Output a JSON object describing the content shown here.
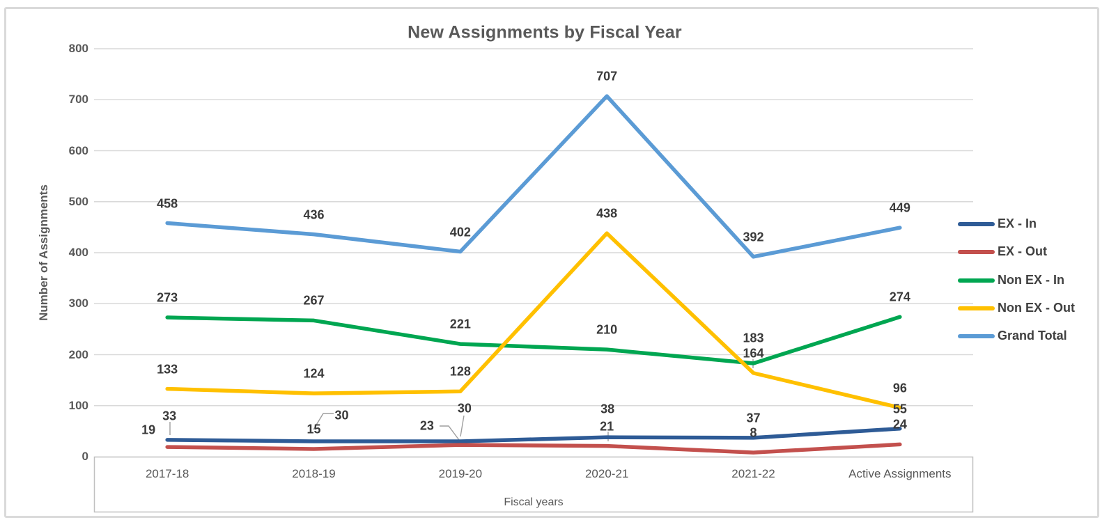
{
  "chart_data": {
    "type": "line",
    "title": "New Assignments by Fiscal Year",
    "xlabel": "Fiscal years",
    "ylabel": "Number of Assignments",
    "categories": [
      "2017-18",
      "2018-19",
      "2019-20",
      "2020-21",
      "2021-22",
      "Active Assignments"
    ],
    "series": [
      {
        "name": "EX - In",
        "color": "#2E5B96",
        "values": [
          33,
          30,
          30,
          38,
          37,
          55
        ]
      },
      {
        "name": "EX - Out",
        "color": "#C3504D",
        "values": [
          19,
          15,
          23,
          21,
          8,
          24
        ]
      },
      {
        "name": "Non EX - In",
        "color": "#00A651",
        "values": [
          273,
          267,
          221,
          210,
          183,
          274
        ]
      },
      {
        "name": "Non EX - Out",
        "color": "#FFC000",
        "values": [
          133,
          124,
          128,
          438,
          164,
          96
        ]
      },
      {
        "name": "Grand Total",
        "color": "#5B9BD5",
        "values": [
          458,
          436,
          402,
          707,
          392,
          449
        ]
      }
    ],
    "ylim": [
      0,
      800
    ],
    "yticks": [
      0,
      100,
      200,
      300,
      400,
      500,
      600,
      700,
      800
    ],
    "grid": true,
    "legend_position": "right",
    "data_labels": true
  }
}
